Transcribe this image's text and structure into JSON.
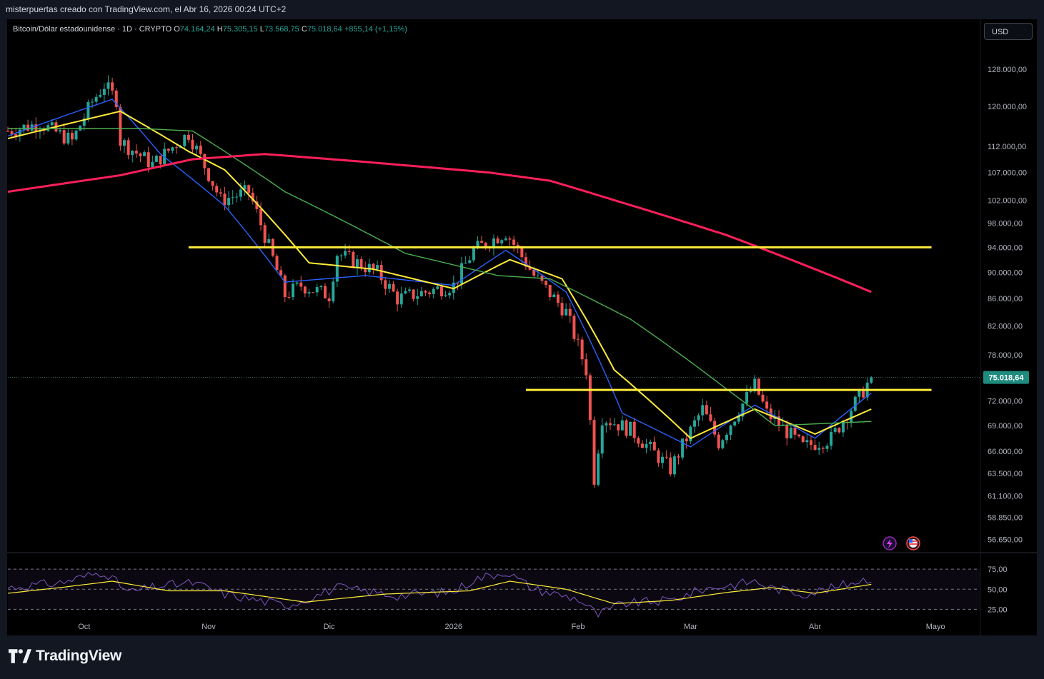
{
  "header": {
    "caption": "misterpuertas creado con TradingView.com, el Abr 16, 2026 00:24 UTC+2"
  },
  "symbol": {
    "name": "Bitcoin/Dólar estadounidense · 1D · CRYPTO",
    "o_label": "O",
    "o_value": "74.164,24",
    "h_label": "H",
    "h_value": "75.305,15",
    "l_label": "L",
    "l_value": "73.568,75",
    "c_label": "C",
    "c_value": "75.018,64",
    "change": "+855,14 (+1,15%)"
  },
  "currency_button": "USD",
  "brand": "TradingView",
  "colors": {
    "up": "#26a69a",
    "down": "#ef5350",
    "ema_fast": "#2962ff",
    "ema_mid": "#ffeb3b",
    "ema_slow": "#4caf50",
    "ema_long": "#ff1f5a",
    "levels": "#ffeb3b",
    "rsi": "#7e57c2"
  },
  "chart_data": [
    {
      "type": "candlestick",
      "title": "",
      "y_axis_ticks": [
        "128.000,00",
        "120.000,00",
        "112.000,00",
        "107.000,00",
        "102.000,00",
        "98.000,00",
        "94.000,00",
        "90.000,00",
        "86.000,00",
        "82.000,00",
        "78.000,00",
        "72.000,00",
        "69.000,00",
        "66.000,00",
        "63.500,00",
        "61.100,00",
        "58.850,00",
        "56.650,00"
      ],
      "y_axis_values": [
        128000,
        120000,
        112000,
        107000,
        102000,
        98000,
        94000,
        90000,
        86000,
        82000,
        78000,
        72000,
        69000,
        66000,
        63500,
        61100,
        58850,
        56650
      ],
      "y_scale": "log",
      "ylim": [
        55500,
        133000
      ],
      "x_axis_ticks": [
        "Oct",
        "Nov",
        "Dic",
        "2026",
        "Feb",
        "Mar",
        "Abr",
        "Mayo"
      ],
      "x_axis_dates": [
        "2025-10-01",
        "2025-11-01",
        "2025-12-01",
        "2026-01-01",
        "2026-02-01",
        "2026-03-01",
        "2026-04-01",
        "2026-05-01"
      ],
      "xlim": [
        "2025-09-12",
        "2026-05-12"
      ],
      "last_price": 75018.64,
      "last_price_label": "75.018,64",
      "horizontal_levels": [
        {
          "price": 94000,
          "from": "2025-10-27",
          "to": "2026-04-30"
        },
        {
          "price": 73400,
          "from": "2026-01-19",
          "to": "2026-04-30"
        }
      ],
      "candles_daily_close_keyframes": [
        {
          "date": "2025-09-12",
          "close": 115000
        },
        {
          "date": "2025-09-20",
          "close": 116500
        },
        {
          "date": "2025-09-28",
          "close": 113000
        },
        {
          "date": "2025-10-03",
          "close": 121000
        },
        {
          "date": "2025-10-06",
          "close": 124500
        },
        {
          "date": "2025-10-09",
          "close": 121500
        },
        {
          "date": "2025-10-10",
          "close": 113000
        },
        {
          "date": "2025-10-18",
          "close": 108500
        },
        {
          "date": "2025-10-27",
          "close": 114500
        },
        {
          "date": "2025-11-04",
          "close": 102000
        },
        {
          "date": "2025-11-11",
          "close": 103500
        },
        {
          "date": "2025-11-20",
          "close": 86500
        },
        {
          "date": "2025-11-24",
          "close": 88000
        },
        {
          "date": "2025-12-01",
          "close": 86500
        },
        {
          "date": "2025-12-03",
          "close": 93000
        },
        {
          "date": "2025-12-13",
          "close": 90000
        },
        {
          "date": "2025-12-18",
          "close": 86000
        },
        {
          "date": "2026-01-01",
          "close": 88000
        },
        {
          "date": "2026-01-06",
          "close": 93500
        },
        {
          "date": "2026-01-14",
          "close": 96500
        },
        {
          "date": "2026-01-21",
          "close": 89500
        },
        {
          "date": "2026-01-29",
          "close": 84000
        },
        {
          "date": "2026-02-03",
          "close": 76000
        },
        {
          "date": "2026-02-05",
          "close": 63000
        },
        {
          "date": "2026-02-07",
          "close": 70000
        },
        {
          "date": "2026-02-14",
          "close": 68500
        },
        {
          "date": "2026-02-24",
          "close": 64000
        },
        {
          "date": "2026-03-04",
          "close": 71000
        },
        {
          "date": "2026-03-08",
          "close": 67000
        },
        {
          "date": "2026-03-17",
          "close": 74000
        },
        {
          "date": "2026-03-20",
          "close": 70500
        },
        {
          "date": "2026-03-29",
          "close": 66500
        },
        {
          "date": "2026-04-05",
          "close": 67500
        },
        {
          "date": "2026-04-12",
          "close": 72500
        },
        {
          "date": "2026-04-15",
          "close": 75018.64
        }
      ],
      "moving_averages": [
        {
          "name": "",
          "color": "#2962ff",
          "points": [
            [
              "2025-09-12",
              114000
            ],
            [
              "2025-10-08",
              121500
            ],
            [
              "2025-10-20",
              110500
            ],
            [
              "2025-11-05",
              101000
            ],
            [
              "2025-11-20",
              88500
            ],
            [
              "2025-12-10",
              89500
            ],
            [
              "2026-01-01",
              88000
            ],
            [
              "2026-01-14",
              93500
            ],
            [
              "2026-01-29",
              87000
            ],
            [
              "2026-02-12",
              70500
            ],
            [
              "2026-03-01",
              66500
            ],
            [
              "2026-03-17",
              71500
            ],
            [
              "2026-04-01",
              67500
            ],
            [
              "2026-04-15",
              73000
            ]
          ]
        },
        {
          "name": "",
          "color": "#ffeb3b",
          "points": [
            [
              "2025-09-12",
              113500
            ],
            [
              "2025-10-10",
              119000
            ],
            [
              "2025-10-27",
              111000
            ],
            [
              "2025-11-05",
              107500
            ],
            [
              "2025-11-26",
              91500
            ],
            [
              "2025-12-12",
              90500
            ],
            [
              "2026-01-01",
              87500
            ],
            [
              "2026-01-15",
              92000
            ],
            [
              "2026-01-28",
              89000
            ],
            [
              "2026-02-10",
              76000
            ],
            [
              "2026-03-01",
              67500
            ],
            [
              "2026-03-17",
              71000
            ],
            [
              "2026-04-01",
              68000
            ],
            [
              "2026-04-15",
              71000
            ]
          ]
        },
        {
          "name": "",
          "color": "#4caf50",
          "points": [
            [
              "2025-09-12",
              115500
            ],
            [
              "2025-10-15",
              115500
            ],
            [
              "2025-10-28",
              115000
            ],
            [
              "2025-11-20",
              103500
            ],
            [
              "2025-12-20",
              93000
            ],
            [
              "2026-01-12",
              89500
            ],
            [
              "2026-01-25",
              89000
            ],
            [
              "2026-02-14",
              83000
            ],
            [
              "2026-03-10",
              73500
            ],
            [
              "2026-03-22",
              69000
            ],
            [
              "2026-04-15",
              69500
            ]
          ]
        },
        {
          "name": "",
          "color": "#ff1f5a",
          "points": [
            [
              "2025-09-12",
              103500
            ],
            [
              "2025-10-10",
              106500
            ],
            [
              "2025-10-28",
              109500
            ],
            [
              "2025-11-15",
              110500
            ],
            [
              "2025-12-10",
              109000
            ],
            [
              "2026-01-10",
              107000
            ],
            [
              "2026-01-25",
              105500
            ],
            [
              "2026-02-10",
              102000
            ],
            [
              "2026-03-10",
              96000
            ],
            [
              "2026-04-15",
              87000
            ]
          ]
        }
      ]
    },
    {
      "type": "line",
      "title": "",
      "y_axis_ticks": [
        "75,00",
        "50,00",
        "25,00"
      ],
      "y_axis_values": [
        75,
        50,
        25
      ],
      "ylim": [
        12,
        92
      ],
      "series": [
        {
          "name": "",
          "color": "#7e57c2",
          "points": [
            [
              "2025-09-12",
              52
            ],
            [
              "2025-09-25",
              58
            ],
            [
              "2025-10-06",
              72
            ],
            [
              "2025-10-12",
              46
            ],
            [
              "2025-10-20",
              54
            ],
            [
              "2025-10-28",
              58
            ],
            [
              "2025-11-05",
              44
            ],
            [
              "2025-11-20",
              30
            ],
            [
              "2025-11-24",
              35
            ],
            [
              "2025-12-03",
              52
            ],
            [
              "2025-12-18",
              42
            ],
            [
              "2026-01-01",
              47
            ],
            [
              "2026-01-06",
              62
            ],
            [
              "2026-01-14",
              72
            ],
            [
              "2026-01-21",
              50
            ],
            [
              "2026-02-01",
              38
            ],
            [
              "2026-02-06",
              18
            ],
            [
              "2026-02-12",
              32
            ],
            [
              "2026-02-24",
              36
            ],
            [
              "2026-03-04",
              50
            ],
            [
              "2026-03-17",
              60
            ],
            [
              "2026-03-21",
              52
            ],
            [
              "2026-03-29",
              44
            ],
            [
              "2026-04-06",
              52
            ],
            [
              "2026-04-11",
              60
            ],
            [
              "2026-04-15",
              64
            ]
          ]
        },
        {
          "name": "",
          "color": "#ffeb3b",
          "points": [
            [
              "2025-09-12",
              45
            ],
            [
              "2025-09-25",
              52
            ],
            [
              "2025-10-08",
              60
            ],
            [
              "2025-10-22",
              48
            ],
            [
              "2025-11-05",
              48
            ],
            [
              "2025-11-25",
              34
            ],
            [
              "2025-12-15",
              44
            ],
            [
              "2026-01-05",
              48
            ],
            [
              "2026-01-15",
              60
            ],
            [
              "2026-01-29",
              50
            ],
            [
              "2026-02-10",
              32
            ],
            [
              "2026-02-24",
              36
            ],
            [
              "2026-03-10",
              46
            ],
            [
              "2026-03-21",
              52
            ],
            [
              "2026-04-01",
              45
            ],
            [
              "2026-04-15",
              56
            ]
          ]
        }
      ]
    }
  ]
}
